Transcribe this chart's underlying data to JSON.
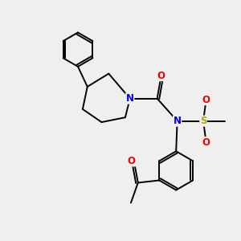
{
  "bg_color": "#efefef",
  "atom_colors": {
    "N": "#0000ee",
    "O": "#ee0000",
    "S": "#aaaa00",
    "C": "#000000"
  },
  "line_color": "#000000",
  "line_width": 1.4,
  "font_size_atom": 8.5
}
